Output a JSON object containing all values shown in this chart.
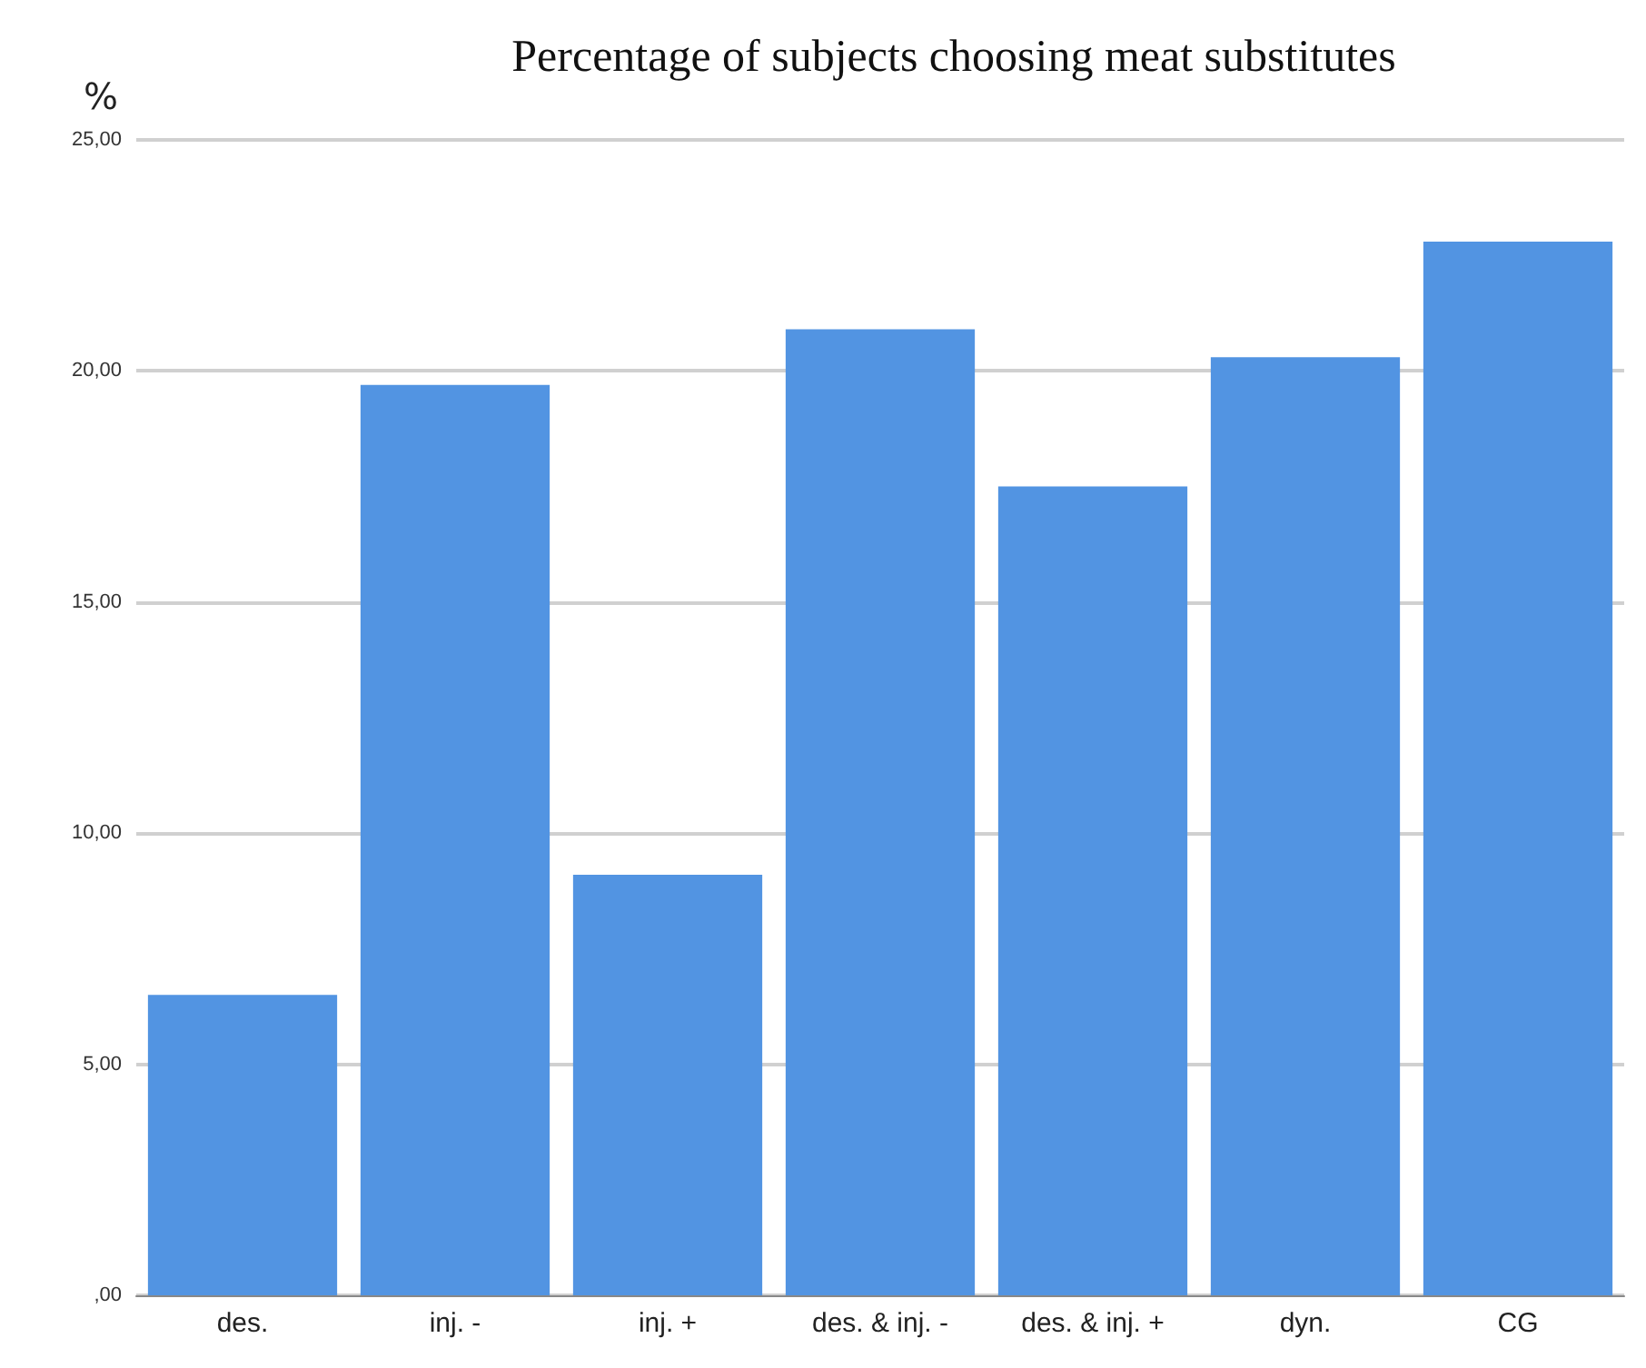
{
  "chart_data": {
    "type": "bar",
    "title": "Percentage of subjects choosing meat substitutes",
    "ylabel": "%",
    "categories": [
      "des.",
      "inj. -",
      "inj. +",
      "des. & inj. -",
      "des. & inj. +",
      "dyn.",
      "CG"
    ],
    "values": [
      6.5,
      19.7,
      9.1,
      20.9,
      17.5,
      20.3,
      22.8
    ],
    "color": "#5294e2",
    "ylim": [
      0,
      25
    ],
    "yticks": [
      {
        "value": 0,
        "label": ",00"
      },
      {
        "value": 5,
        "label": "5,00"
      },
      {
        "value": 10,
        "label": "10,00"
      },
      {
        "value": 15,
        "label": "15,00"
      },
      {
        "value": 20,
        "label": "20,00"
      },
      {
        "value": 25,
        "label": "25,00"
      }
    ],
    "grid": "y"
  }
}
